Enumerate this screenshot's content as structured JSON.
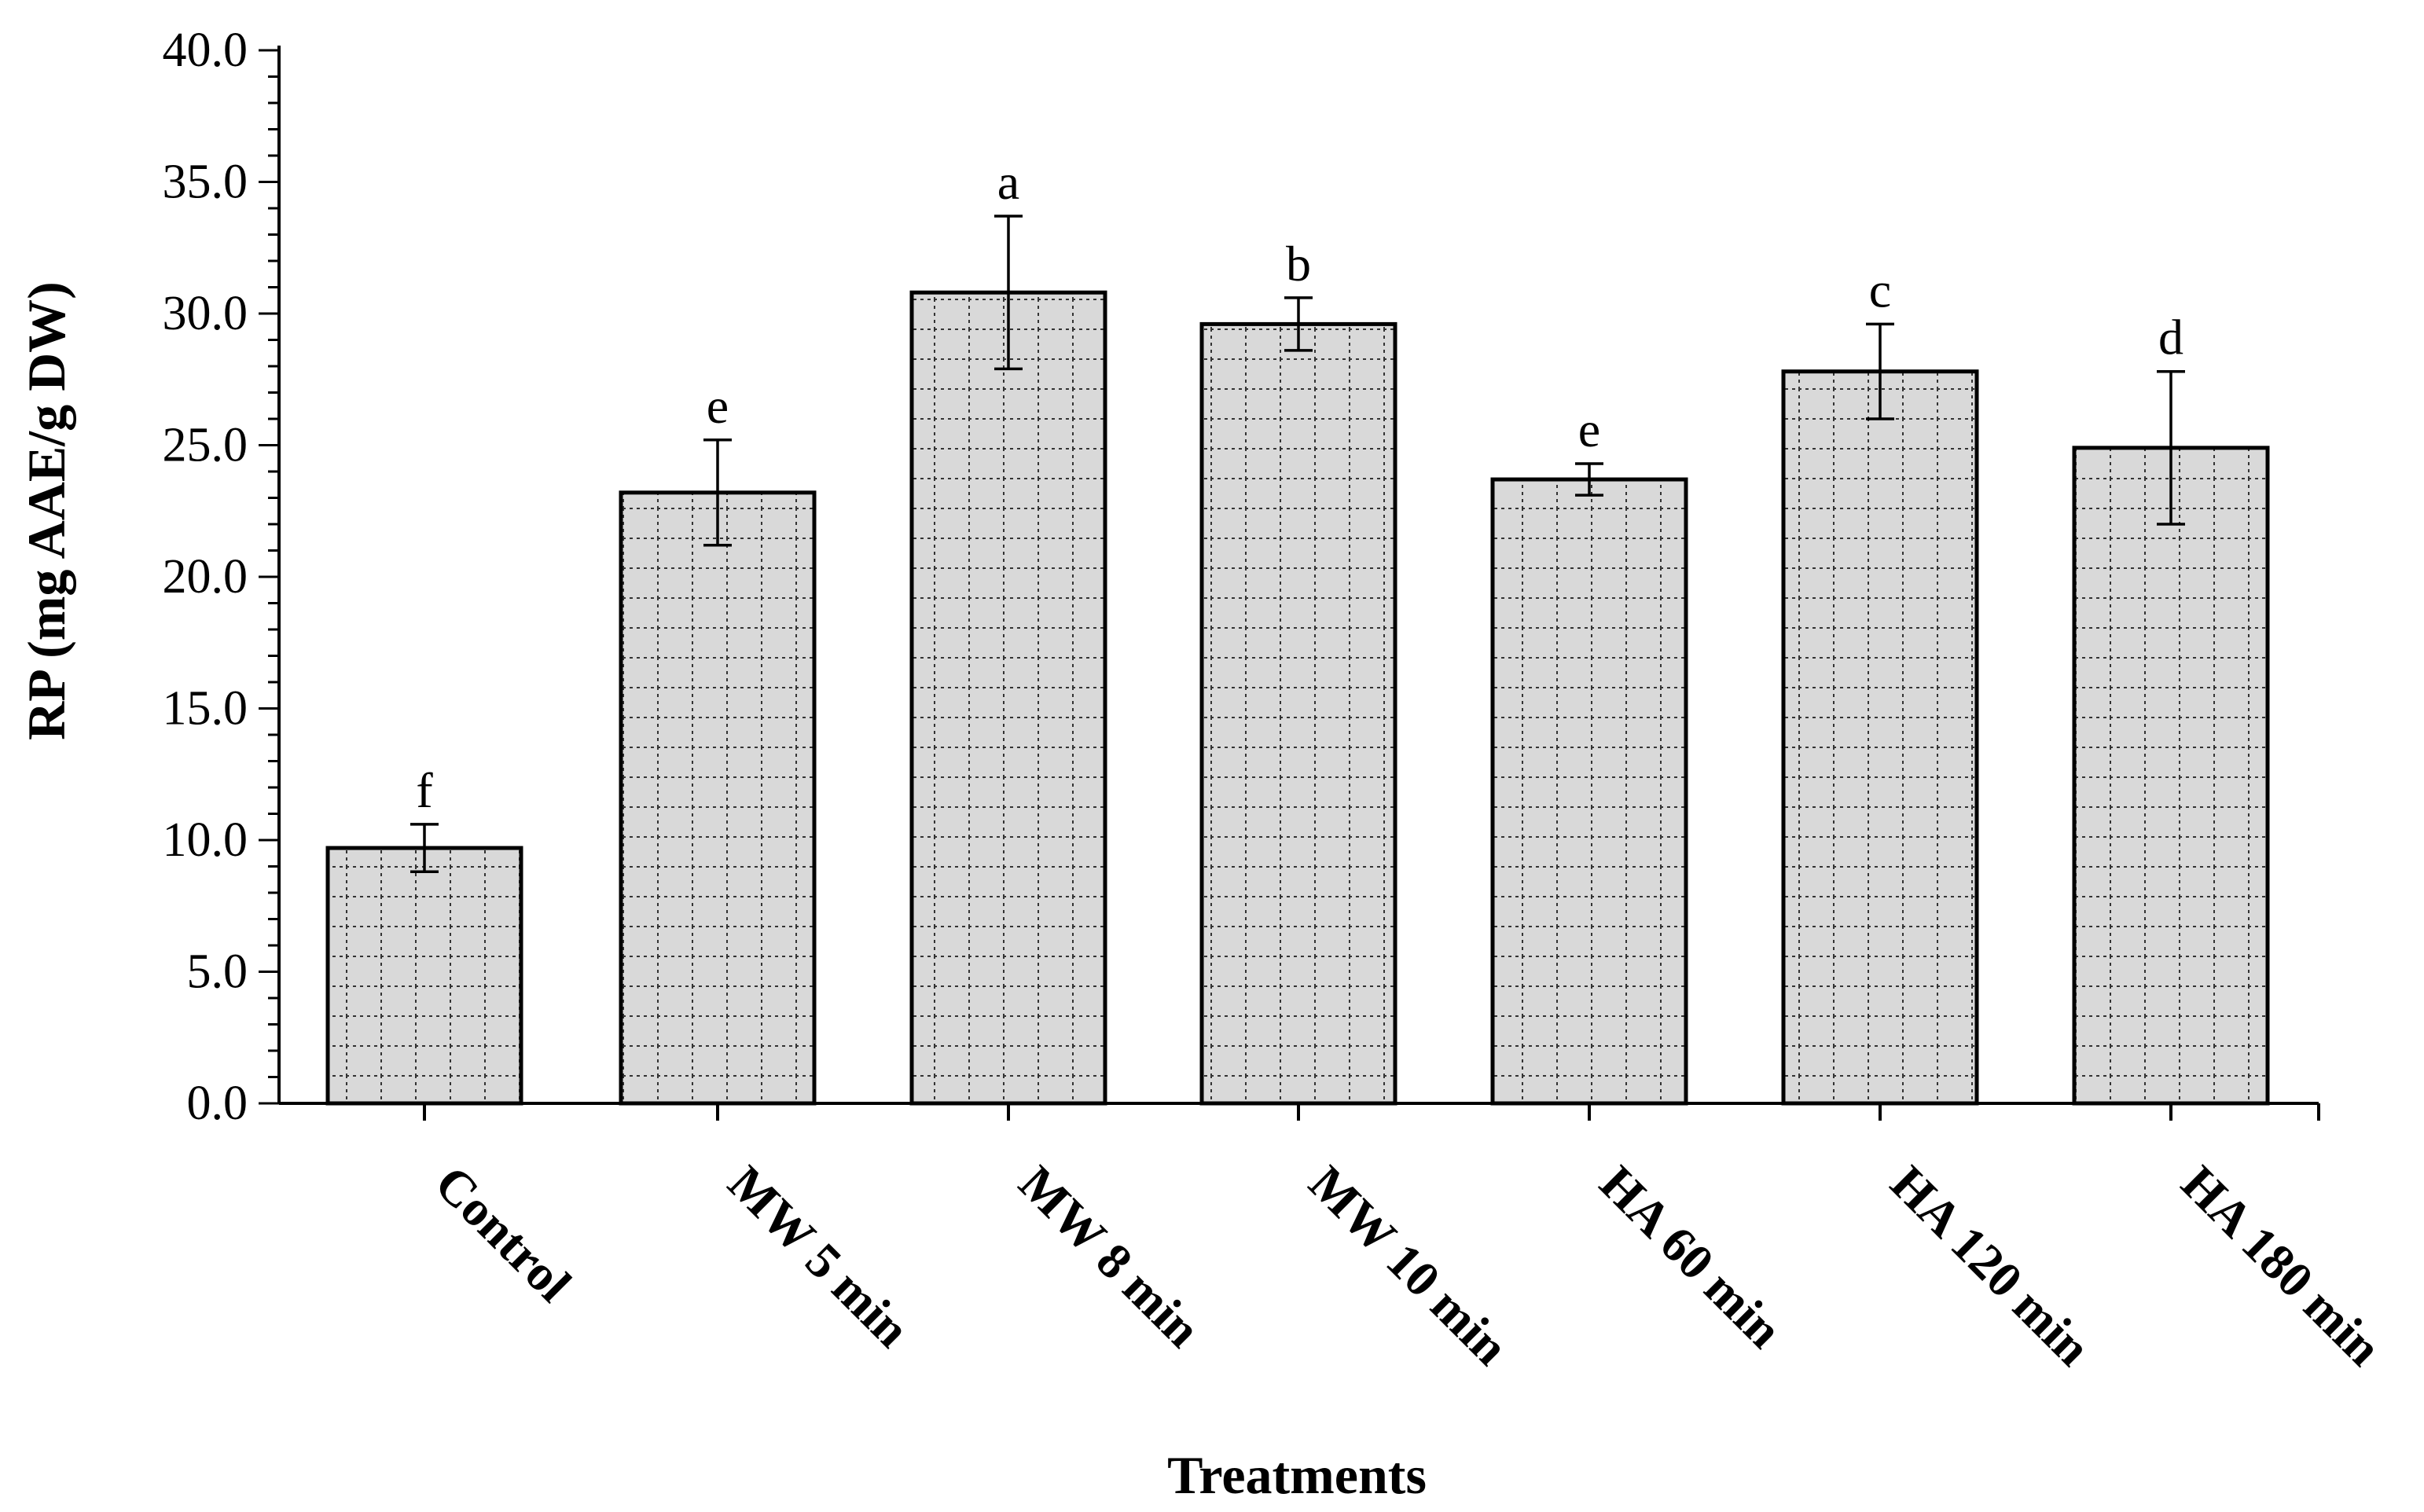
{
  "chart_data": {
    "type": "bar",
    "title": "",
    "xlabel": "Treatments",
    "ylabel": "RP (mg AAE/g DW)",
    "ylim": [
      0,
      40
    ],
    "ytick_step": 5,
    "yticks": [
      "0.0",
      "5.0",
      "10.0",
      "15.0",
      "20.0",
      "25.0",
      "30.0",
      "35.0",
      "40.0"
    ],
    "categories": [
      "Control",
      "MW 5 min",
      "MW 8 min",
      "MW 10 min",
      "HA 60 min",
      "HA 120 min",
      "HA 180 min"
    ],
    "values": [
      9.7,
      23.2,
      30.8,
      29.6,
      23.7,
      27.8,
      24.9
    ],
    "errors": [
      0.9,
      2.0,
      2.9,
      1.0,
      0.6,
      1.8,
      2.9
    ],
    "significance": [
      "f",
      "e",
      "a",
      "b",
      "e",
      "c",
      "d"
    ],
    "bar_fill": "#d9d9d9",
    "bar_pattern": "dotted-grid",
    "grid": false
  }
}
